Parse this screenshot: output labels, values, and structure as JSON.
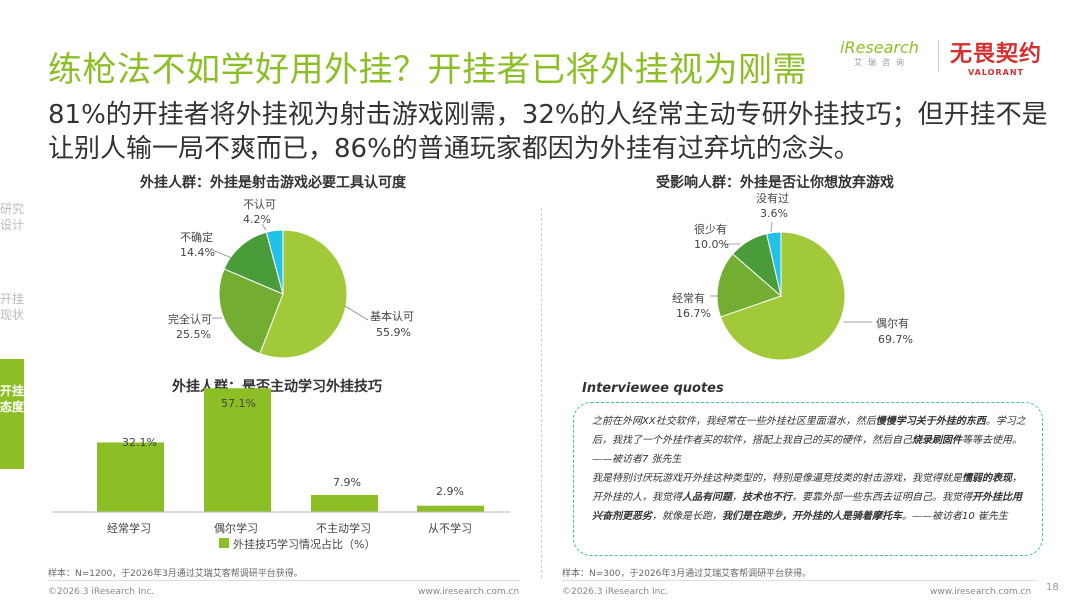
{
  "title": "练枪法不如学好用外挂？开挂者已将外挂视为刚需",
  "subtitle": "81%的开挂者将外挂视为射击游戏刚需，32%的人经常主动专研外挂技巧；但开挂不是让别人输一局不爽而已，86%的普通玩家都因为外挂有过弃坑的念头。",
  "brand": {
    "iresearch": "iResearch",
    "iresearch_cn": "艾瑞咨询",
    "partner": "无畏契约",
    "partner_sub": "VALORANT"
  },
  "nav": [
    {
      "label": "研究设计",
      "active": false
    },
    {
      "label": "开挂现状",
      "active": false
    },
    {
      "label": "开挂态度",
      "active": true
    }
  ],
  "colors": {
    "accent": "#8cbf26",
    "light_green": "#a2c93a",
    "mid_green": "#73ad31",
    "dark_green": "#4a9b3a",
    "cyan": "#22c1e8",
    "quote_border": "#3fbfa0"
  },
  "chart_data": [
    {
      "type": "pie",
      "title": "外挂人群：外挂是射击游戏必要工具认可度",
      "slices": [
        {
          "label": "基本认可",
          "value": 55.9,
          "display": "55.9%",
          "color": "#a2c93a"
        },
        {
          "label": "完全认可",
          "value": 25.5,
          "display": "25.5%",
          "color": "#73ad31"
        },
        {
          "label": "不确定",
          "value": 14.4,
          "display": "14.4%",
          "color": "#4a9b3a"
        },
        {
          "label": "不认可",
          "value": 4.2,
          "display": "4.2%",
          "color": "#22c1e8"
        }
      ]
    },
    {
      "type": "pie",
      "title": "受影响人群：外挂是否让你想放弃游戏",
      "slices": [
        {
          "label": "偶尔有",
          "value": 69.7,
          "display": "69.7%",
          "color": "#a2c93a"
        },
        {
          "label": "经常有",
          "value": 16.7,
          "display": "16.7%",
          "color": "#73ad31"
        },
        {
          "label": "很少有",
          "value": 10.0,
          "display": "10.0%",
          "color": "#4a9b3a"
        },
        {
          "label": "没有过",
          "value": 3.6,
          "display": "3.6%",
          "color": "#22c1e8"
        }
      ]
    },
    {
      "type": "bar",
      "title": "外挂人群：是否主动学习外挂技巧",
      "categories": [
        "经常学习",
        "偶尔学习",
        "不主动学习",
        "从不学习"
      ],
      "values": [
        32.1,
        57.1,
        7.9,
        2.9
      ],
      "value_labels": [
        "32.1%",
        "57.1%",
        "7.9%",
        "2.9%"
      ],
      "legend": "外挂技巧学习情况占比（%）",
      "ylim": [
        0,
        60
      ],
      "color": "#8cbf26"
    }
  ],
  "notes": {
    "left": "样本：N=1200，于2026年3月通过艾瑞艾客帮调研平台获得。",
    "right": "样本：N=300，于2026年3月通过艾瑞艾客帮调研平台获得。"
  },
  "footer": {
    "copyright": "©2026.3 iResearch Inc.",
    "url": "www.iresearch.com.cn",
    "page": "18"
  },
  "quotes": {
    "heading": "Interviewee quotes",
    "q1_a": "之前在外网XX社交软件，我经常在一些外挂社区里面潜水，然后",
    "q1_b": "慢慢学习关于外挂的东西",
    "q1_c": "。学习之后，我找了一个外挂作者买的软件，搭配上我自己的买的硬件，然后自己",
    "q1_d": "烧录刷固件",
    "q1_e": "等等去使用。——被访者7 张先生",
    "q2_a": "我是特别讨厌玩游戏开外挂这种类型的，特别是像逼竞技类的射击游戏，我觉得就是",
    "q2_b": "懦弱的表现",
    "q2_c": "，开外挂的人，我觉得",
    "q2_d": "人品有问题",
    "q2_e": "，",
    "q2_f": "技术也不行",
    "q2_g": "，要靠外部一些东西去证明自己。我觉得",
    "q2_h": "开外挂比用兴奋剂更恶劣",
    "q2_i": "，就像是长跑，",
    "q2_j": "我们是在跑步，开外挂的人是骑着摩托车",
    "q2_k": "。——被访者10 崔先生"
  }
}
